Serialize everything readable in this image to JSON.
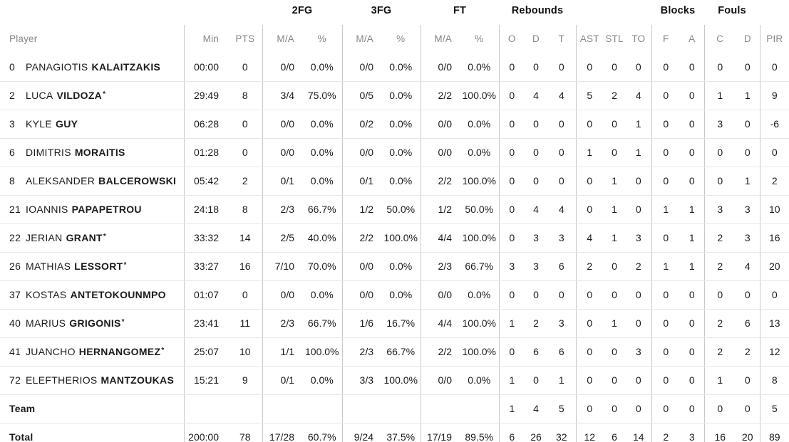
{
  "colors": {
    "text": "#1b1b1f",
    "muted_header": "#87878c",
    "column_divider": "#c9c9c9",
    "row_line": "#e7e7e9",
    "background": "#ffffff"
  },
  "table": {
    "starter_mark": "*",
    "groups": {
      "fg2": "2FG",
      "fg3": "3FG",
      "ft": "FT",
      "rebounds": "Rebounds",
      "blocks": "Blocks",
      "fouls": "Fouls"
    },
    "columns": {
      "player": "Player",
      "min": "Min",
      "pts": "PTS",
      "ma": "M/A",
      "pct": "%",
      "o": "O",
      "d": "D",
      "t": "T",
      "ast": "AST",
      "stl": "STL",
      "to": "TO",
      "f": "F",
      "a": "A",
      "c": "C",
      "d2": "D",
      "pir": "PIR"
    },
    "players": [
      {
        "num": "0",
        "first": "PANAGIOTIS",
        "last": "KALAITZAKIS",
        "starter": false,
        "min": "00:00",
        "pts": "0",
        "fg2_ma": "0/0",
        "fg2_pct": "0.0%",
        "fg3_ma": "0/0",
        "fg3_pct": "0.0%",
        "ft_ma": "0/0",
        "ft_pct": "0.0%",
        "reb_o": "0",
        "reb_d": "0",
        "reb_t": "0",
        "ast": "0",
        "stl": "0",
        "to": "0",
        "blk_f": "0",
        "blk_a": "0",
        "foul_c": "0",
        "foul_d": "0",
        "pir": "0"
      },
      {
        "num": "2",
        "first": "LUCA",
        "last": "VILDOZA",
        "starter": true,
        "min": "29:49",
        "pts": "8",
        "fg2_ma": "3/4",
        "fg2_pct": "75.0%",
        "fg3_ma": "0/5",
        "fg3_pct": "0.0%",
        "ft_ma": "2/2",
        "ft_pct": "100.0%",
        "reb_o": "0",
        "reb_d": "4",
        "reb_t": "4",
        "ast": "5",
        "stl": "2",
        "to": "4",
        "blk_f": "0",
        "blk_a": "0",
        "foul_c": "1",
        "foul_d": "1",
        "pir": "9"
      },
      {
        "num": "3",
        "first": "KYLE",
        "last": "GUY",
        "starter": false,
        "min": "06:28",
        "pts": "0",
        "fg2_ma": "0/0",
        "fg2_pct": "0.0%",
        "fg3_ma": "0/2",
        "fg3_pct": "0.0%",
        "ft_ma": "0/0",
        "ft_pct": "0.0%",
        "reb_o": "0",
        "reb_d": "0",
        "reb_t": "0",
        "ast": "0",
        "stl": "0",
        "to": "1",
        "blk_f": "0",
        "blk_a": "0",
        "foul_c": "3",
        "foul_d": "0",
        "pir": "-6"
      },
      {
        "num": "6",
        "first": "DIMITRIS",
        "last": "MORAITIS",
        "starter": false,
        "min": "01:28",
        "pts": "0",
        "fg2_ma": "0/0",
        "fg2_pct": "0.0%",
        "fg3_ma": "0/0",
        "fg3_pct": "0.0%",
        "ft_ma": "0/0",
        "ft_pct": "0.0%",
        "reb_o": "0",
        "reb_d": "0",
        "reb_t": "0",
        "ast": "1",
        "stl": "0",
        "to": "1",
        "blk_f": "0",
        "blk_a": "0",
        "foul_c": "0",
        "foul_d": "0",
        "pir": "0"
      },
      {
        "num": "8",
        "first": "ALEKSANDER",
        "last": "BALCEROWSKI",
        "starter": false,
        "min": "05:42",
        "pts": "2",
        "fg2_ma": "0/1",
        "fg2_pct": "0.0%",
        "fg3_ma": "0/1",
        "fg3_pct": "0.0%",
        "ft_ma": "2/2",
        "ft_pct": "100.0%",
        "reb_o": "0",
        "reb_d": "0",
        "reb_t": "0",
        "ast": "0",
        "stl": "1",
        "to": "0",
        "blk_f": "0",
        "blk_a": "0",
        "foul_c": "0",
        "foul_d": "1",
        "pir": "2"
      },
      {
        "num": "21",
        "first": "IOANNIS",
        "last": "PAPAPETROU",
        "starter": false,
        "min": "24:18",
        "pts": "8",
        "fg2_ma": "2/3",
        "fg2_pct": "66.7%",
        "fg3_ma": "1/2",
        "fg3_pct": "50.0%",
        "ft_ma": "1/2",
        "ft_pct": "50.0%",
        "reb_o": "0",
        "reb_d": "4",
        "reb_t": "4",
        "ast": "0",
        "stl": "1",
        "to": "0",
        "blk_f": "1",
        "blk_a": "1",
        "foul_c": "3",
        "foul_d": "3",
        "pir": "10"
      },
      {
        "num": "22",
        "first": "JERIAN",
        "last": "GRANT",
        "starter": true,
        "min": "33:32",
        "pts": "14",
        "fg2_ma": "2/5",
        "fg2_pct": "40.0%",
        "fg3_ma": "2/2",
        "fg3_pct": "100.0%",
        "ft_ma": "4/4",
        "ft_pct": "100.0%",
        "reb_o": "0",
        "reb_d": "3",
        "reb_t": "3",
        "ast": "4",
        "stl": "1",
        "to": "3",
        "blk_f": "0",
        "blk_a": "1",
        "foul_c": "2",
        "foul_d": "3",
        "pir": "16"
      },
      {
        "num": "26",
        "first": "MATHIAS",
        "last": "LESSORT",
        "starter": true,
        "min": "33:27",
        "pts": "16",
        "fg2_ma": "7/10",
        "fg2_pct": "70.0%",
        "fg3_ma": "0/0",
        "fg3_pct": "0.0%",
        "ft_ma": "2/3",
        "ft_pct": "66.7%",
        "reb_o": "3",
        "reb_d": "3",
        "reb_t": "6",
        "ast": "2",
        "stl": "0",
        "to": "2",
        "blk_f": "1",
        "blk_a": "1",
        "foul_c": "2",
        "foul_d": "4",
        "pir": "20"
      },
      {
        "num": "37",
        "first": "KOSTAS",
        "last": "ANTETOKOUNMPO",
        "starter": false,
        "min": "01:07",
        "pts": "0",
        "fg2_ma": "0/0",
        "fg2_pct": "0.0%",
        "fg3_ma": "0/0",
        "fg3_pct": "0.0%",
        "ft_ma": "0/0",
        "ft_pct": "0.0%",
        "reb_o": "0",
        "reb_d": "0",
        "reb_t": "0",
        "ast": "0",
        "stl": "0",
        "to": "0",
        "blk_f": "0",
        "blk_a": "0",
        "foul_c": "0",
        "foul_d": "0",
        "pir": "0"
      },
      {
        "num": "40",
        "first": "MARIUS",
        "last": "GRIGONIS",
        "starter": true,
        "min": "23:41",
        "pts": "11",
        "fg2_ma": "2/3",
        "fg2_pct": "66.7%",
        "fg3_ma": "1/6",
        "fg3_pct": "16.7%",
        "ft_ma": "4/4",
        "ft_pct": "100.0%",
        "reb_o": "1",
        "reb_d": "2",
        "reb_t": "3",
        "ast": "0",
        "stl": "1",
        "to": "0",
        "blk_f": "0",
        "blk_a": "0",
        "foul_c": "2",
        "foul_d": "6",
        "pir": "13"
      },
      {
        "num": "41",
        "first": "JUANCHO",
        "last": "HERNANGOMEZ",
        "starter": true,
        "min": "25:07",
        "pts": "10",
        "fg2_ma": "1/1",
        "fg2_pct": "100.0%",
        "fg3_ma": "2/3",
        "fg3_pct": "66.7%",
        "ft_ma": "2/2",
        "ft_pct": "100.0%",
        "reb_o": "0",
        "reb_d": "6",
        "reb_t": "6",
        "ast": "0",
        "stl": "0",
        "to": "3",
        "blk_f": "0",
        "blk_a": "0",
        "foul_c": "2",
        "foul_d": "2",
        "pir": "12"
      },
      {
        "num": "72",
        "first": "ELEFTHERIOS",
        "last": "MANTZOUKAS",
        "starter": false,
        "min": "15:21",
        "pts": "9",
        "fg2_ma": "0/1",
        "fg2_pct": "0.0%",
        "fg3_ma": "3/3",
        "fg3_pct": "100.0%",
        "ft_ma": "0/0",
        "ft_pct": "0.0%",
        "reb_o": "1",
        "reb_d": "0",
        "reb_t": "1",
        "ast": "0",
        "stl": "0",
        "to": "0",
        "blk_f": "0",
        "blk_a": "0",
        "foul_c": "1",
        "foul_d": "0",
        "pir": "8"
      }
    ],
    "team": {
      "label": "Team",
      "min": "",
      "pts": "",
      "fg2_ma": "",
      "fg2_pct": "",
      "fg3_ma": "",
      "fg3_pct": "",
      "ft_ma": "",
      "ft_pct": "",
      "reb_o": "1",
      "reb_d": "4",
      "reb_t": "5",
      "ast": "0",
      "stl": "0",
      "to": "0",
      "blk_f": "0",
      "blk_a": "0",
      "foul_c": "0",
      "foul_d": "0",
      "pir": "5"
    },
    "total": {
      "label": "Total",
      "min": "200:00",
      "pts": "78",
      "fg2_ma": "17/28",
      "fg2_pct": "60.7%",
      "fg3_ma": "9/24",
      "fg3_pct": "37.5%",
      "ft_ma": "17/19",
      "ft_pct": "89.5%",
      "reb_o": "6",
      "reb_d": "26",
      "reb_t": "32",
      "ast": "12",
      "stl": "6",
      "to": "14",
      "blk_f": "2",
      "blk_a": "3",
      "foul_c": "16",
      "foul_d": "20",
      "pir": "89"
    }
  }
}
